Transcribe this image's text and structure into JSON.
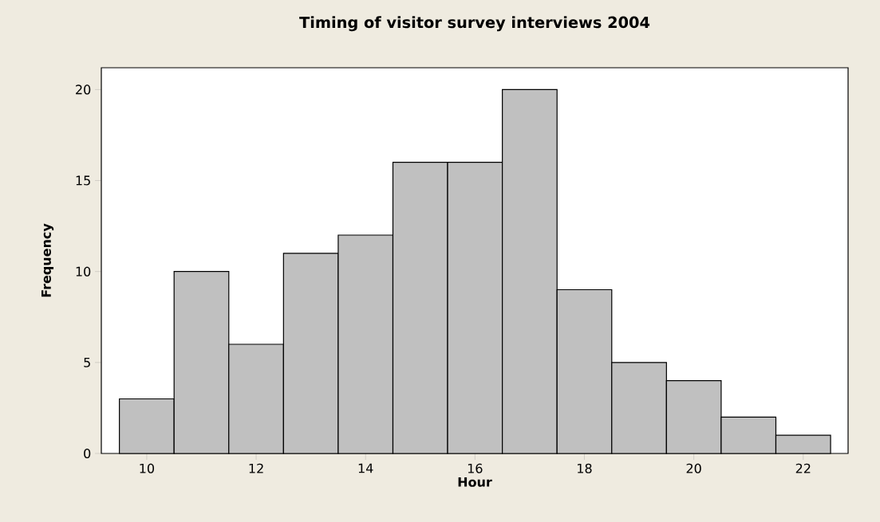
{
  "chart_data": {
    "type": "histogram",
    "title": "Timing of visitor survey interviews 2004",
    "xlabel": "Hour",
    "ylabel": "Frequency",
    "bins": [
      9.5,
      10.5,
      11.5,
      12.5,
      13.5,
      14.5,
      15.5,
      16.5,
      17.5,
      18.5,
      19.5,
      20.5,
      21.5,
      22.5
    ],
    "values": [
      3,
      10,
      6,
      11,
      12,
      16,
      16,
      20,
      9,
      5,
      4,
      2,
      1
    ],
    "color": "#c0c0c0",
    "xlim": [
      9.17,
      22.82
    ],
    "ylim": [
      0,
      21.2
    ],
    "xticks": [
      10,
      12,
      14,
      16,
      18,
      20,
      22
    ],
    "yticks": [
      0,
      5,
      10,
      15,
      20
    ]
  }
}
